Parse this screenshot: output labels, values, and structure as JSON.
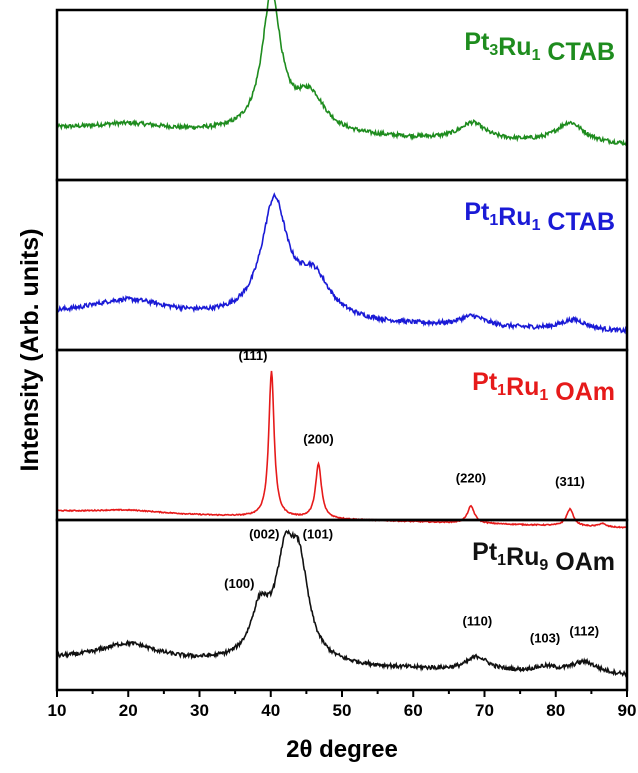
{
  "chart_data": {
    "type": "line",
    "xlabel": "2θ degree",
    "ylabel": "Intensity (Arb. units)",
    "xlim": [
      10,
      90
    ],
    "x_ticks": [
      10,
      20,
      30,
      40,
      50,
      60,
      70,
      80,
      90
    ],
    "panels": [
      {
        "name_parts": [
          {
            "t": "Pt",
            "sub": false
          },
          {
            "t": "3",
            "sub": true
          },
          {
            "t": "Ru",
            "sub": false
          },
          {
            "t": "1",
            "sub": true
          },
          {
            "t": " CTAB",
            "sub": false
          }
        ],
        "color": "#1e8c1e",
        "baseline": 0.3,
        "noise": 0.012,
        "peaks": [
          {
            "x": 20,
            "h": 0.04,
            "w": 6
          },
          {
            "x": 40.1,
            "h": 0.8,
            "w": 1.6
          },
          {
            "x": 45.5,
            "h": 0.22,
            "w": 2.6
          },
          {
            "x": 68.3,
            "h": 0.1,
            "w": 2.2
          },
          {
            "x": 82.0,
            "h": 0.12,
            "w": 2.4
          }
        ],
        "annotations": []
      },
      {
        "name_parts": [
          {
            "t": "Pt",
            "sub": false
          },
          {
            "t": "1",
            "sub": true
          },
          {
            "t": "Ru",
            "sub": false
          },
          {
            "t": "1",
            "sub": true
          },
          {
            "t": " CTAB",
            "sub": false
          }
        ],
        "color": "#1a1ad6",
        "baseline": 0.2,
        "noise": 0.013,
        "peaks": [
          {
            "x": 20,
            "h": 0.1,
            "w": 7
          },
          {
            "x": 40.5,
            "h": 0.68,
            "w": 2.2
          },
          {
            "x": 46.0,
            "h": 0.24,
            "w": 2.8
          },
          {
            "x": 68.3,
            "h": 0.06,
            "w": 2.2
          },
          {
            "x": 82.5,
            "h": 0.06,
            "w": 2.2
          }
        ],
        "annotations": []
      },
      {
        "name_parts": [
          {
            "t": "Pt",
            "sub": false
          },
          {
            "t": "1",
            "sub": true
          },
          {
            "t": "Ru",
            "sub": false
          },
          {
            "t": "1",
            "sub": true
          },
          {
            "t": " OAm",
            "sub": false
          }
        ],
        "color": "#e61a1a",
        "baseline": 0.05,
        "noise": 0.003,
        "peaks": [
          {
            "x": 20,
            "h": 0.02,
            "w": 6
          },
          {
            "x": 40.1,
            "h": 0.86,
            "w": 0.45
          },
          {
            "x": 46.7,
            "h": 0.32,
            "w": 0.5
          },
          {
            "x": 68.1,
            "h": 0.1,
            "w": 0.6
          },
          {
            "x": 82.0,
            "h": 0.1,
            "w": 0.6
          },
          {
            "x": 86.5,
            "h": 0.02,
            "w": 0.6
          }
        ],
        "annotations": [
          {
            "text": "(111)",
            "x": 40.1,
            "y": 0.94,
            "anchor": "end",
            "dx": -4
          },
          {
            "text": "(200)",
            "x": 46.7,
            "y": 0.45,
            "anchor": "middle",
            "dx": 0
          },
          {
            "text": "(220)",
            "x": 68.1,
            "y": 0.22,
            "anchor": "middle",
            "dx": 0
          },
          {
            "text": "(311)",
            "x": 82.0,
            "y": 0.2,
            "anchor": "middle",
            "dx": 0
          }
        ]
      },
      {
        "name_parts": [
          {
            "t": "Pt",
            "sub": false
          },
          {
            "t": "1",
            "sub": true
          },
          {
            "t": "Ru",
            "sub": false
          },
          {
            "t": "9",
            "sub": true
          },
          {
            "t": " OAm",
            "sub": false
          }
        ],
        "color": "#111111",
        "baseline": 0.18,
        "noise": 0.012,
        "peaks": [
          {
            "x": 20,
            "h": 0.1,
            "w": 5
          },
          {
            "x": 38.5,
            "h": 0.28,
            "w": 1.6
          },
          {
            "x": 42.0,
            "h": 0.52,
            "w": 1.6
          },
          {
            "x": 44.0,
            "h": 0.5,
            "w": 1.6
          },
          {
            "x": 69.0,
            "h": 0.08,
            "w": 1.8
          },
          {
            "x": 78.5,
            "h": 0.03,
            "w": 2.0
          },
          {
            "x": 84.0,
            "h": 0.07,
            "w": 2.2
          }
        ],
        "annotations": [
          {
            "text": "(002)",
            "x": 41.5,
            "y": 0.89,
            "anchor": "end",
            "dx": -2
          },
          {
            "text": "(101)",
            "x": 44.2,
            "y": 0.89,
            "anchor": "start",
            "dx": 2
          },
          {
            "text": "(100)",
            "x": 38.0,
            "y": 0.6,
            "anchor": "end",
            "dx": -2
          },
          {
            "text": "(110)",
            "x": 69.0,
            "y": 0.38,
            "anchor": "middle",
            "dx": 0
          },
          {
            "text": "(103)",
            "x": 78.5,
            "y": 0.28,
            "anchor": "middle",
            "dx": 0
          },
          {
            "text": "(112)",
            "x": 84.0,
            "y": 0.32,
            "anchor": "middle",
            "dx": 0
          }
        ]
      }
    ]
  }
}
